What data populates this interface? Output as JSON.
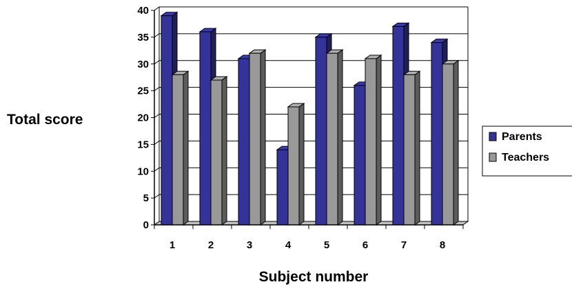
{
  "chart_data": {
    "type": "bar",
    "title": "",
    "xlabel": "Subject number",
    "ylabel": "Total score",
    "categories": [
      "1",
      "2",
      "3",
      "4",
      "5",
      "6",
      "7",
      "8"
    ],
    "series": [
      {
        "name": "Parents",
        "values": [
          39,
          36,
          31,
          14,
          35,
          26,
          37,
          34
        ],
        "color": "#33339a"
      },
      {
        "name": "Teachers",
        "values": [
          28,
          27,
          32,
          22,
          32,
          31,
          28,
          30
        ],
        "color": "#999999"
      }
    ],
    "ylim": [
      0,
      40
    ],
    "yticks": [
      0,
      5,
      10,
      15,
      20,
      25,
      30,
      35,
      40
    ],
    "grid": true,
    "style": "3d-bars",
    "legend": {
      "position": "right"
    }
  }
}
